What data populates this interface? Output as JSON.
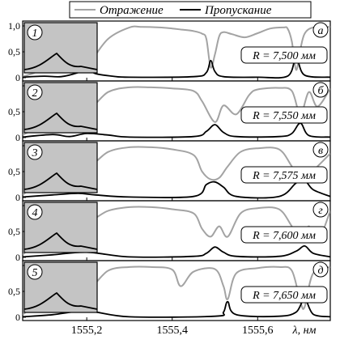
{
  "legend": {
    "reflection_label": "Отражение",
    "transmission_label": "Пропускание",
    "reflection_color": "#a3a3a3",
    "transmission_color": "#000000"
  },
  "inset_color": "#c4c4c4",
  "chart_data": {
    "type": "line",
    "xlabel": "λ, нм",
    "x_ticks": [
      "1555,2",
      "1555,4",
      "1555,6"
    ],
    "x_tick_values": [
      1555.2,
      1555.4,
      1555.6
    ],
    "xlim": [
      1555.05,
      1555.77
    ],
    "ylim": [
      0,
      1.0
    ],
    "y_ticks": [
      "0",
      "0,5",
      "1,0"
    ],
    "panels": [
      {
        "letter": "а",
        "number": "1",
        "radius_label": "R = 7,500 мм",
        "reflection": {
          "x": [
            1555.05,
            1555.09,
            1555.11,
            1555.15,
            1555.19,
            1555.2,
            1555.21,
            1555.25,
            1555.3,
            1555.33,
            1555.37,
            1555.4,
            1555.42,
            1555.45,
            1555.47,
            1555.48,
            1555.49,
            1555.5,
            1555.51,
            1555.52,
            1555.54,
            1555.57,
            1555.6,
            1555.63,
            1555.66,
            1555.67,
            1555.68,
            1555.69,
            1555.7,
            1555.71,
            1555.73,
            1555.77
          ],
          "y": [
            0.02,
            0.15,
            0.45,
            0.82,
            0.35,
            0.12,
            0.3,
            0.75,
            0.97,
            0.98,
            0.97,
            0.95,
            0.93,
            0.9,
            0.85,
            0.75,
            0.2,
            0.45,
            0.8,
            0.88,
            0.84,
            0.78,
            0.86,
            0.95,
            0.97,
            0.95,
            0.7,
            0.15,
            0.55,
            0.85,
            0.97,
            0.98
          ]
        },
        "transmission": {
          "x": [
            1555.05,
            1555.1,
            1555.14,
            1555.18,
            1555.2,
            1555.22,
            1555.26,
            1555.3,
            1555.45,
            1555.48,
            1555.49,
            1555.5,
            1555.52,
            1555.6,
            1555.67,
            1555.69,
            1555.71,
            1555.77
          ],
          "y": [
            0.01,
            0.03,
            0.02,
            0.1,
            0.18,
            0.08,
            0.03,
            0.01,
            0.02,
            0.1,
            0.33,
            0.12,
            0.02,
            0.01,
            0.03,
            0.38,
            0.05,
            0.01
          ]
        }
      },
      {
        "letter": "б",
        "number": "2",
        "radius_label": "R = 7,550 мм",
        "reflection": {
          "x": [
            1555.05,
            1555.1,
            1555.15,
            1555.2,
            1555.25,
            1555.3,
            1555.35,
            1555.4,
            1555.45,
            1555.47,
            1555.5,
            1555.52,
            1555.55,
            1555.58,
            1555.6,
            1555.65,
            1555.68,
            1555.7,
            1555.72,
            1555.74,
            1555.77
          ],
          "y": [
            0.05,
            0.3,
            0.85,
            0.55,
            0.88,
            0.97,
            0.97,
            0.95,
            0.9,
            0.7,
            0.3,
            0.62,
            0.45,
            0.82,
            0.93,
            0.96,
            0.9,
            0.45,
            0.88,
            0.6,
            0.95
          ]
        },
        "transmission": {
          "x": [
            1555.05,
            1555.12,
            1555.16,
            1555.2,
            1555.25,
            1555.3,
            1555.45,
            1555.48,
            1555.5,
            1555.52,
            1555.55,
            1555.65,
            1555.68,
            1555.7,
            1555.72,
            1555.77
          ],
          "y": [
            0.01,
            0.06,
            0.02,
            0.08,
            0.05,
            0.01,
            0.02,
            0.12,
            0.25,
            0.1,
            0.02,
            0.02,
            0.08,
            0.28,
            0.04,
            0.01
          ]
        }
      },
      {
        "letter": "в",
        "number": "3",
        "radius_label": "R = 7,575 мм",
        "reflection": {
          "x": [
            1555.05,
            1555.1,
            1555.15,
            1555.2,
            1555.25,
            1555.3,
            1555.35,
            1555.4,
            1555.45,
            1555.47,
            1555.49,
            1555.51,
            1555.53,
            1555.56,
            1555.6,
            1555.65,
            1555.68,
            1555.7,
            1555.72,
            1555.74,
            1555.77
          ],
          "y": [
            0.05,
            0.4,
            0.9,
            0.6,
            0.88,
            0.97,
            0.97,
            0.93,
            0.82,
            0.5,
            0.35,
            0.38,
            0.6,
            0.88,
            0.95,
            0.93,
            0.6,
            0.35,
            0.45,
            0.6,
            0.85
          ]
        },
        "transmission": {
          "x": [
            1555.05,
            1555.12,
            1555.18,
            1555.22,
            1555.3,
            1555.45,
            1555.48,
            1555.5,
            1555.52,
            1555.55,
            1555.65,
            1555.69,
            1555.71,
            1555.73,
            1555.77
          ],
          "y": [
            0.01,
            0.05,
            0.08,
            0.05,
            0.01,
            0.02,
            0.25,
            0.3,
            0.2,
            0.02,
            0.02,
            0.28,
            0.33,
            0.15,
            0.02
          ]
        }
      },
      {
        "letter": "г",
        "number": "4",
        "radius_label": "R = 7,600 мм",
        "reflection": {
          "x": [
            1555.05,
            1555.1,
            1555.15,
            1555.2,
            1555.25,
            1555.3,
            1555.35,
            1555.4,
            1555.45,
            1555.47,
            1555.49,
            1555.51,
            1555.53,
            1555.56,
            1555.6,
            1555.65,
            1555.68,
            1555.7,
            1555.72,
            1555.74,
            1555.77
          ],
          "y": [
            0.05,
            0.45,
            0.9,
            0.7,
            0.9,
            0.97,
            0.97,
            0.93,
            0.85,
            0.55,
            0.4,
            0.6,
            0.4,
            0.85,
            0.95,
            0.93,
            0.6,
            0.35,
            0.6,
            0.3,
            0.9
          ]
        },
        "transmission": {
          "x": [
            1555.05,
            1555.12,
            1555.2,
            1555.3,
            1555.45,
            1555.48,
            1555.5,
            1555.52,
            1555.55,
            1555.65,
            1555.69,
            1555.71,
            1555.73,
            1555.77
          ],
          "y": [
            0.01,
            0.05,
            0.1,
            0.01,
            0.02,
            0.08,
            0.2,
            0.1,
            0.02,
            0.02,
            0.12,
            0.22,
            0.08,
            0.01
          ]
        }
      },
      {
        "letter": "д",
        "number": "5",
        "radius_label": "R = 7,650 мм",
        "reflection": {
          "x": [
            1555.05,
            1555.1,
            1555.15,
            1555.2,
            1555.25,
            1555.3,
            1555.35,
            1555.4,
            1555.42,
            1555.45,
            1555.5,
            1555.52,
            1555.53,
            1555.55,
            1555.6,
            1555.65,
            1555.68,
            1555.7,
            1555.71,
            1555.73,
            1555.77
          ],
          "y": [
            0.05,
            0.4,
            0.88,
            0.55,
            0.9,
            0.97,
            0.97,
            0.92,
            0.6,
            0.88,
            0.93,
            0.6,
            0.35,
            0.85,
            0.95,
            0.97,
            0.9,
            0.3,
            0.2,
            0.85,
            0.97
          ]
        },
        "transmission": {
          "x": [
            1555.05,
            1555.12,
            1555.2,
            1555.3,
            1555.5,
            1555.52,
            1555.53,
            1555.55,
            1555.65,
            1555.69,
            1555.71,
            1555.73,
            1555.77
          ],
          "y": [
            0.01,
            0.05,
            0.12,
            0.01,
            0.02,
            0.1,
            0.3,
            0.05,
            0.02,
            0.1,
            0.35,
            0.06,
            0.01
          ]
        }
      }
    ]
  }
}
